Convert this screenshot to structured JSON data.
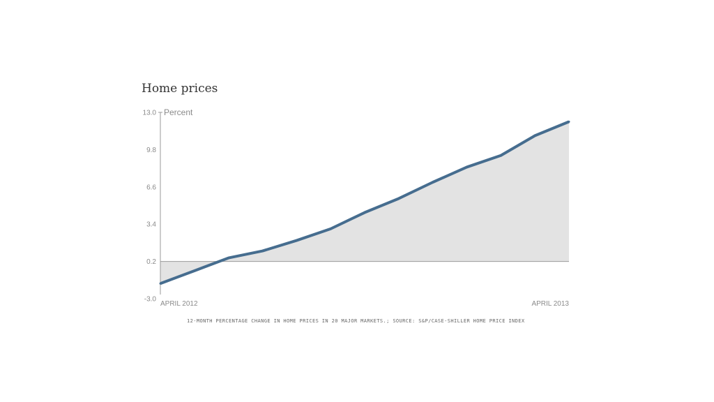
{
  "chart_data": {
    "type": "area",
    "title": "Home prices",
    "ylabel": "Percent",
    "xlabel": "",
    "x_start_label": "APRIL 2012",
    "x_end_label": "APRIL 2013",
    "x": [
      "Apr 2012",
      "May 2012",
      "Jun 2012",
      "Jul 2012",
      "Aug 2012",
      "Sep 2012",
      "Oct 2012",
      "Nov 2012",
      "Dec 2012",
      "Jan 2013",
      "Feb 2013",
      "Mar 2013",
      "Apr 2013"
    ],
    "values": [
      -1.7,
      -0.6,
      0.5,
      1.1,
      2.0,
      3.0,
      4.4,
      5.6,
      7.0,
      8.3,
      9.3,
      11.0,
      12.2
    ],
    "yticks": [
      13.0,
      9.8,
      6.6,
      3.4,
      0.2,
      -3.0
    ],
    "ytick_labels": [
      "13.0",
      "9.8",
      "6.6",
      "3.4",
      "0.2",
      "-3.0"
    ],
    "ylim": [
      -3.0,
      13.0
    ],
    "baseline": 0.2,
    "grid": false,
    "legend": "none",
    "line_color": "#466d8f",
    "fill_color": "#e3e3e3",
    "footnote": "12-month percentage change in home prices in 20 major markets.; Source: S&P/Case-Shiller Home Price Index"
  }
}
